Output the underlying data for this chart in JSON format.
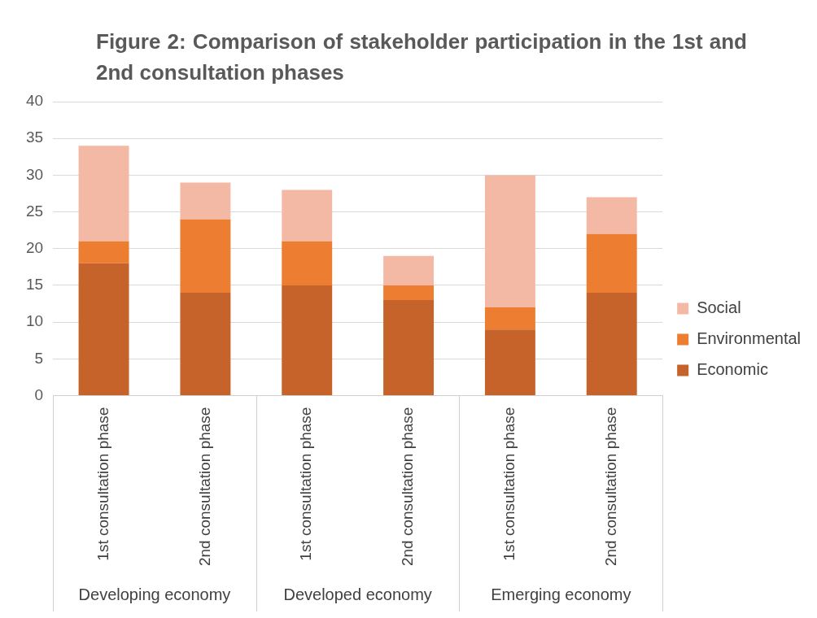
{
  "chart_data": {
    "type": "bar",
    "title": "Figure 2: Comparison of stakeholder participation  in the 1st and 2nd consultation phases",
    "categories": [
      "1st consultation phase",
      "2nd consultation phase",
      "1st consultation phase",
      "2nd consultation phase",
      "1st consultation phase",
      "2nd consultation phase"
    ],
    "stacked": true,
    "series": [
      {
        "name": "Economic",
        "color": "#c5632a",
        "values": [
          18,
          14,
          15,
          13,
          9,
          14
        ]
      },
      {
        "name": "Environmental",
        "color": "#ed7d31",
        "values": [
          3,
          10,
          6,
          2,
          3,
          8
        ]
      },
      {
        "name": "Social",
        "color": "#f4b9a5",
        "values": [
          13,
          5,
          7,
          4,
          18,
          5
        ]
      }
    ],
    "ylim": [
      0,
      40
    ],
    "yticks": [
      0,
      5,
      10,
      15,
      20,
      25,
      30,
      35,
      40
    ],
    "grid": "y",
    "legend": "right",
    "annotations": [
      "Developing economy",
      "Developed economy",
      "Emerging economy"
    ]
  }
}
